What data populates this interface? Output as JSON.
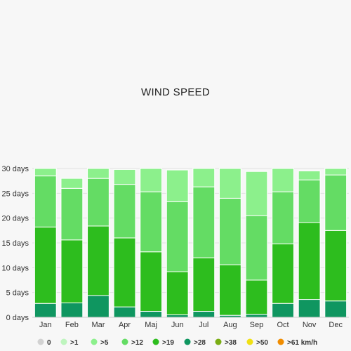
{
  "chart_data": {
    "type": "bar",
    "stacked": true,
    "title": "WIND SPEED",
    "xlabel": "",
    "ylabel": "",
    "ylim": [
      0,
      30
    ],
    "y_ticks": [
      0,
      5,
      10,
      15,
      20,
      25,
      30
    ],
    "y_tick_suffix": " days",
    "grid": true,
    "legend_position": "bottom",
    "categories": [
      "Jan",
      "Feb",
      "Mar",
      "Apr",
      "Maj",
      "Jun",
      "Jul",
      "Aug",
      "Sep",
      "Oct",
      "Nov",
      "Dec"
    ],
    "series": [
      {
        "name": ">61 km/h",
        "color": "#f08c00",
        "values": [
          0,
          0,
          0,
          0,
          0,
          0,
          0,
          0,
          0,
          0,
          0,
          0
        ]
      },
      {
        "name": ">50",
        "color": "#f0e014",
        "values": [
          0,
          0,
          0,
          0,
          0,
          0,
          0,
          0,
          0,
          0,
          0,
          0
        ]
      },
      {
        "name": ">38",
        "color": "#7aad14",
        "values": [
          0,
          0,
          0,
          0,
          0,
          0,
          0,
          0,
          0,
          0,
          0,
          0
        ]
      },
      {
        "name": ">28",
        "color": "#0f9660",
        "values": [
          2.8,
          2.9,
          4.4,
          2.1,
          1.2,
          0.5,
          1.2,
          0.4,
          0.6,
          2.8,
          3.6,
          3.3
        ]
      },
      {
        "name": ">19",
        "color": "#2dbd1e",
        "values": [
          15.4,
          12.7,
          14.0,
          13.9,
          12.0,
          8.7,
          10.8,
          10.2,
          6.9,
          12.0,
          15.5,
          14.2
        ]
      },
      {
        "name": ">12",
        "color": "#64dc64",
        "values": [
          10.3,
          10.4,
          9.6,
          10.8,
          12.1,
          14.1,
          14.3,
          13.4,
          13.0,
          10.5,
          8.6,
          11.2
        ]
      },
      {
        "name": ">5",
        "color": "#8cf08c",
        "values": [
          1.5,
          2.0,
          2.0,
          3.0,
          4.7,
          6.4,
          3.7,
          6.0,
          8.9,
          4.7,
          1.8,
          1.3
        ]
      },
      {
        "name": ">1",
        "color": "#bef5be",
        "values": [
          0,
          0,
          0,
          0,
          0,
          0,
          0,
          0,
          0,
          0,
          0,
          0
        ]
      },
      {
        "name": "0",
        "color": "#d2d2d2",
        "values": [
          0,
          0,
          0,
          0,
          0,
          0,
          0,
          0,
          0,
          0,
          0,
          0
        ]
      }
    ]
  }
}
